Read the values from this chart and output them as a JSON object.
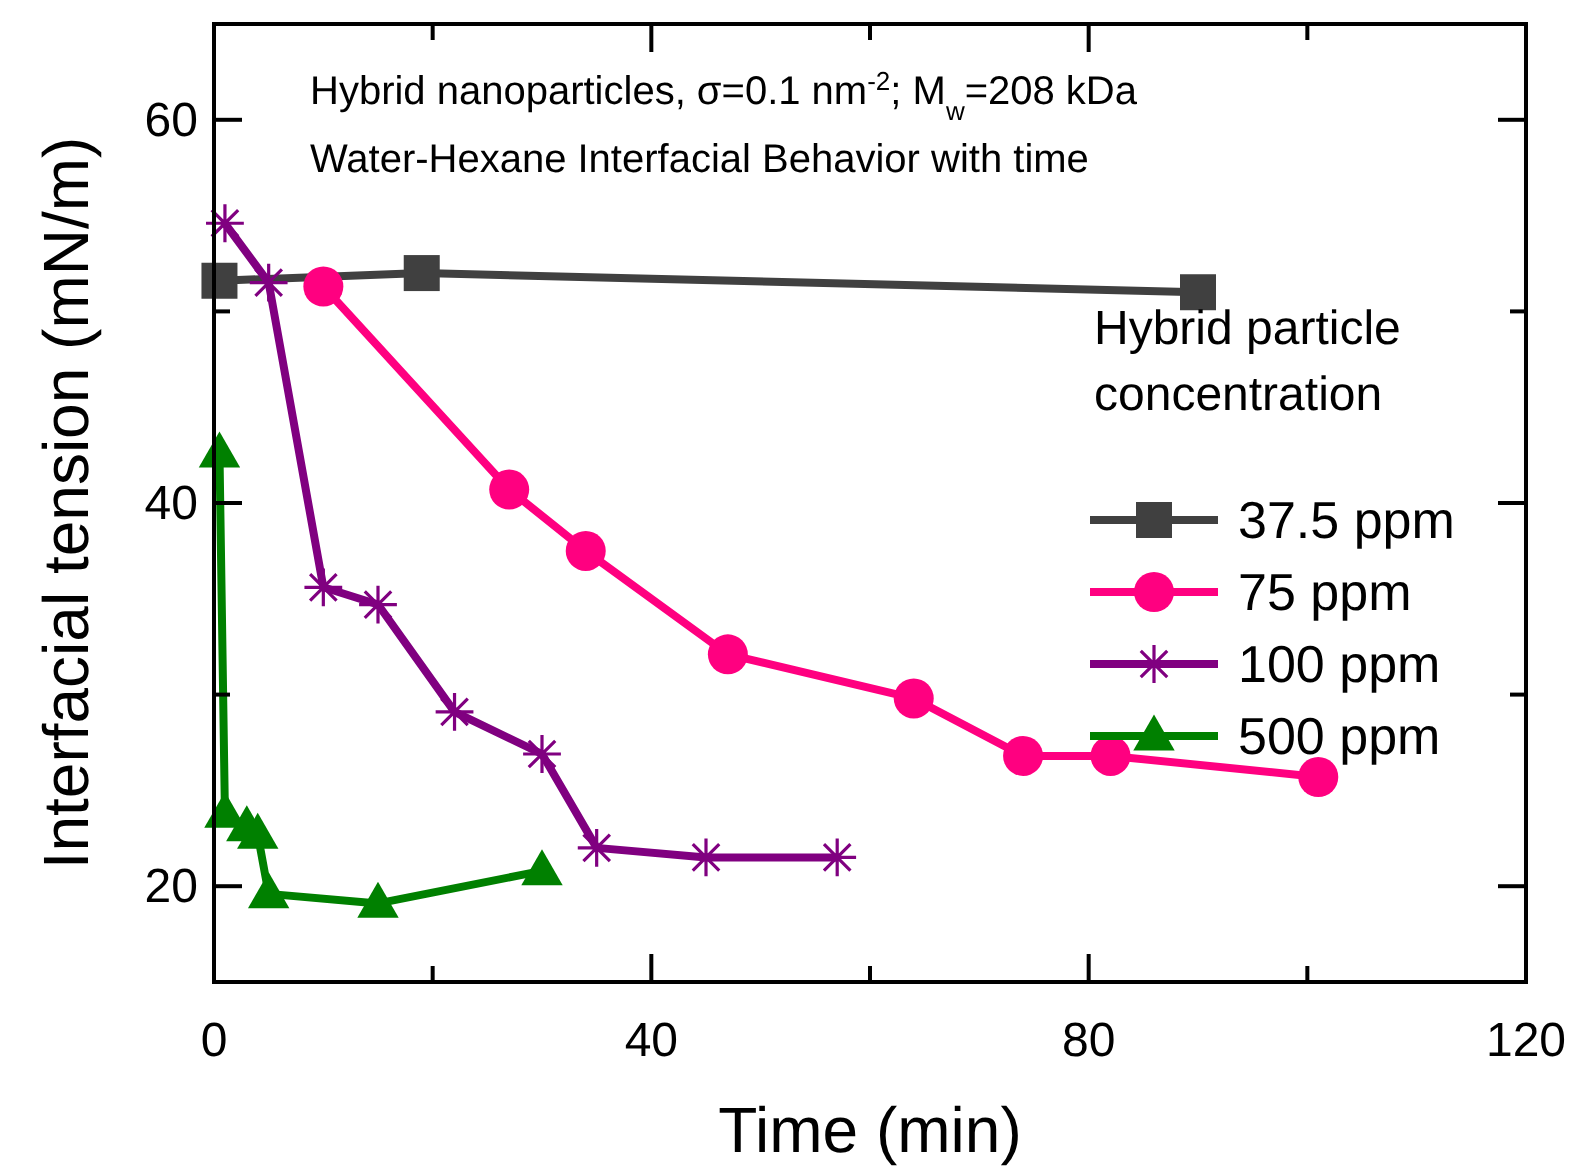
{
  "chart_data": {
    "type": "line",
    "xlabel": "Time (min)",
    "ylabel": "Interfacial tension (mN/m)",
    "annotations": [
      "Hybrid nanoparticles, σ=0.1 nm$^{-2}$; M$_{w}$=208 kDa",
      "Water-Hexane Interfacial Behavior with time"
    ],
    "legend_title": "Hybrid particle concentration",
    "legend": "right",
    "xlim": [
      0,
      120
    ],
    "xticks": [
      0,
      {
        "value": 20,
        "label": null
      },
      40,
      {
        "value": 60,
        "label": null
      },
      80,
      {
        "value": 100,
        "label": null
      },
      120
    ],
    "ylim": [
      15,
      65
    ],
    "yticks": [
      20,
      {
        "value": 30,
        "label": null
      },
      40,
      {
        "value": 50,
        "label": null
      },
      60
    ],
    "series": [
      {
        "name": "37.5 ppm",
        "color": "#404040",
        "marker": "square",
        "x": [
          0.5,
          19,
          90
        ],
        "values": [
          51.6,
          52.0,
          51.0
        ]
      },
      {
        "name": "75 ppm",
        "color": "#ff0080",
        "marker": "circle",
        "x": [
          10,
          27,
          34,
          47,
          64,
          74,
          82,
          101
        ],
        "values": [
          51.3,
          40.7,
          37.5,
          32.1,
          29.8,
          26.8,
          26.8,
          25.7
        ]
      },
      {
        "name": "100 ppm",
        "color": "#800080",
        "marker": "cross",
        "x": [
          1,
          5,
          10,
          15,
          22,
          30,
          35,
          45,
          57
        ],
        "values": [
          54.6,
          51.5,
          35.6,
          34.7,
          29.1,
          26.9,
          22.0,
          21.5,
          21.5
        ]
      },
      {
        "name": "500 ppm",
        "color": "#008000",
        "marker": "triangle",
        "x": [
          0.5,
          1,
          3,
          4,
          5,
          15,
          30
        ],
        "values": [
          42.6,
          23.8,
          23.1,
          22.7,
          19.6,
          19.1,
          20.8
        ]
      }
    ]
  }
}
